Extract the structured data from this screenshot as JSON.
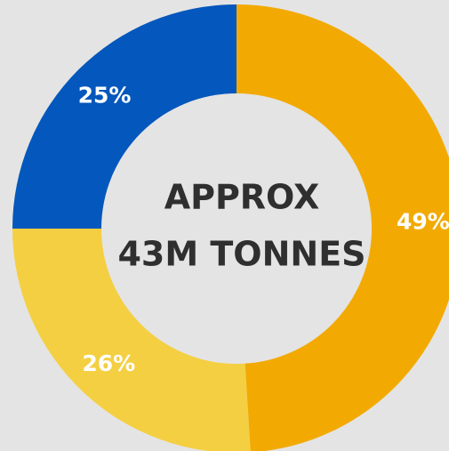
{
  "chart_data": {
    "type": "pie",
    "donut": true,
    "values": [
      49,
      26,
      25
    ],
    "labels": [
      "49%",
      "26%",
      "25%"
    ],
    "colors": [
      "#f2aa03",
      "#f4cf42",
      "#0457bc"
    ],
    "center_text": [
      "APPROX",
      "43M TONNES"
    ]
  },
  "background": "#e4e4e4",
  "center_fill": "#e4e4e4",
  "text_color": "#2f2f2f"
}
